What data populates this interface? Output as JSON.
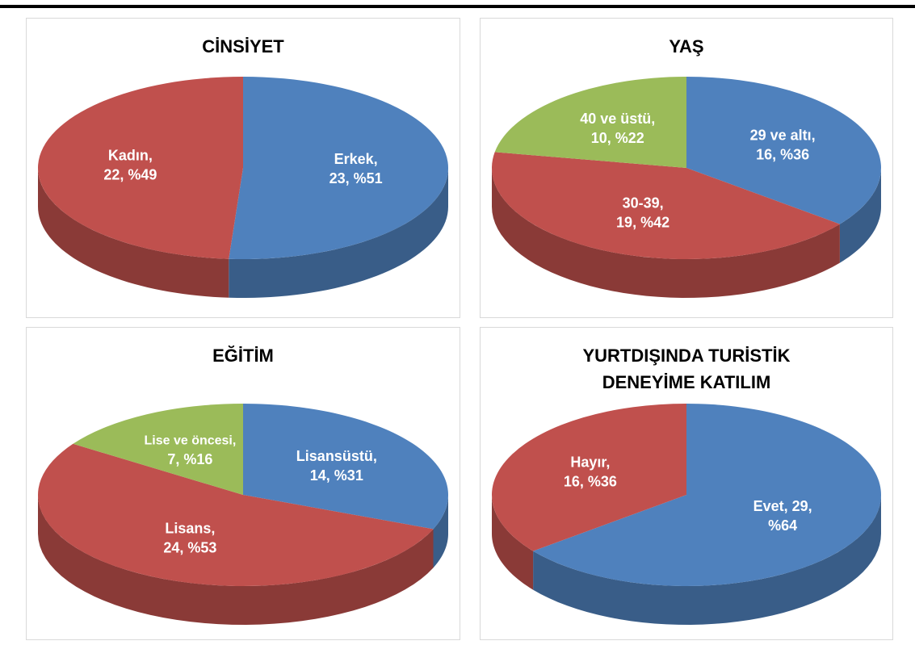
{
  "chart_data": [
    {
      "type": "pie",
      "title": "CİNSİYET",
      "categories": [
        "Erkek",
        "Kadın"
      ],
      "values": [
        23,
        22
      ],
      "value_labels": [
        [
          "Erkek,",
          "23, %51"
        ],
        [
          "Kadın,",
          "22, %49"
        ]
      ],
      "colors": [
        "#4f81bd",
        "#c0504d"
      ]
    },
    {
      "type": "pie",
      "title": "YAŞ",
      "categories": [
        "29 ve altı",
        "30-39",
        "40 ve üstü"
      ],
      "values": [
        16,
        19,
        10
      ],
      "value_labels": [
        [
          "29 ve altı,",
          "16, %36"
        ],
        [
          "30-39,",
          "19, %42"
        ],
        [
          "40 ve üstü,",
          "10, %22"
        ]
      ],
      "colors": [
        "#4f81bd",
        "#c0504d",
        "#9bbb59"
      ]
    },
    {
      "type": "pie",
      "title": "EĞİTİM",
      "categories": [
        "Lisansüstü",
        "Lisans",
        "Lise ve öncesi"
      ],
      "values": [
        14,
        24,
        7
      ],
      "value_labels": [
        [
          "Lisansüstü,",
          "14, %31"
        ],
        [
          "Lisans,",
          "24, %53"
        ],
        [
          "Lise ve öncesi,",
          "7, %16"
        ]
      ],
      "colors": [
        "#4f81bd",
        "#c0504d",
        "#9bbb59"
      ]
    },
    {
      "type": "pie",
      "title": "YURTDIŞINDA TURİSTİK DENEYİME KATILIM",
      "categories": [
        "Evet",
        "Hayır"
      ],
      "values": [
        29,
        16
      ],
      "value_labels": [
        [
          "Evet, 29,",
          "%64"
        ],
        [
          "Hayır,",
          "16, %36"
        ]
      ],
      "colors": [
        "#4f81bd",
        "#c0504d"
      ]
    }
  ]
}
